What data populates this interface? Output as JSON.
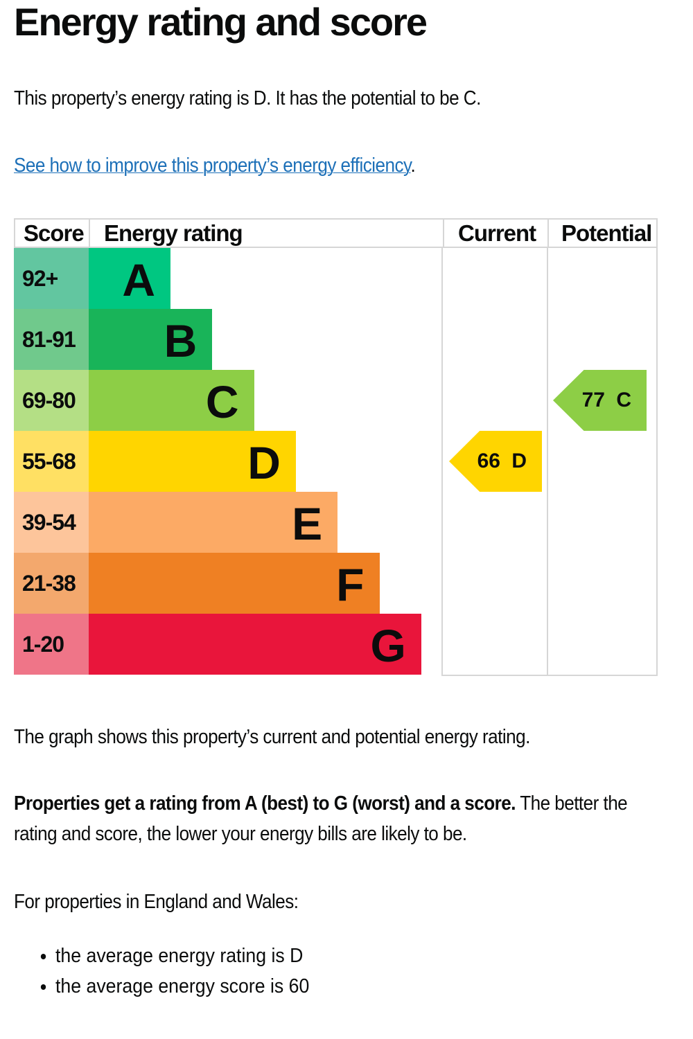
{
  "title": "Energy rating and score",
  "intro": "This property’s energy rating is D. It has the potential to be C.",
  "link": {
    "text": "See how to improve this property’s energy efficiency",
    "suffix": "."
  },
  "chart_data": {
    "type": "table",
    "headers": {
      "score": "Score",
      "rating": "Energy rating",
      "current": "Current",
      "potential": "Potential"
    },
    "bands": [
      {
        "letter": "A",
        "range": "92+",
        "color": "#00c781",
        "light": "#62c6a0"
      },
      {
        "letter": "B",
        "range": "81-91",
        "color": "#19b459",
        "light": "#70c98c"
      },
      {
        "letter": "C",
        "range": "69-80",
        "color": "#8dce46",
        "light": "#b4df85"
      },
      {
        "letter": "D",
        "range": "55-68",
        "color": "#ffd500",
        "light": "#ffe063"
      },
      {
        "letter": "E",
        "range": "39-54",
        "color": "#fcaa65",
        "light": "#fdc59b"
      },
      {
        "letter": "F",
        "range": "21-38",
        "color": "#ef8023",
        "light": "#f3a86d"
      },
      {
        "letter": "G",
        "range": "1-20",
        "color": "#e9153b",
        "light": "#ef7588"
      }
    ],
    "current": {
      "score": 66,
      "letter": "D",
      "label": "66 D"
    },
    "potential": {
      "score": 77,
      "letter": "C",
      "label": "77 C"
    }
  },
  "graph_note": "The graph shows this property’s current and potential energy rating.",
  "ratings_bold": "Properties get a rating from A (best) to G (worst) and a score.",
  "ratings_rest": " The better the rating and score, the lower your energy bills are likely to be.",
  "england_wales": "For properties in England and Wales:",
  "bullets": [
    "the average energy rating is D",
    "the average energy score is 60"
  ]
}
